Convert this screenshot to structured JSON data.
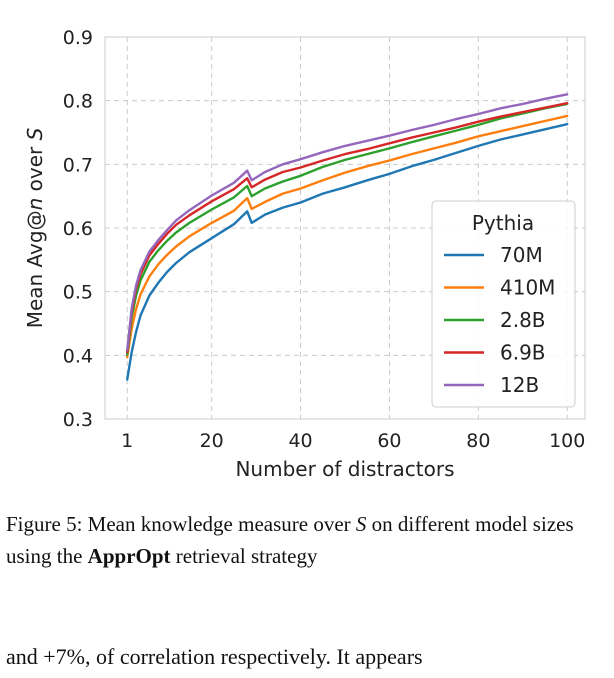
{
  "chart_data": {
    "type": "line",
    "xlabel": "Number of distractors",
    "ylabel_prefix": "Mean Avg@",
    "ylabel_var": "n",
    "ylabel_mid": " over ",
    "ylabel_set": "S",
    "xlim": [
      -4,
      104
    ],
    "ylim": [
      0.3,
      0.9
    ],
    "xticks": [
      1,
      20,
      40,
      60,
      80,
      100
    ],
    "yticks": [
      0.3,
      0.4,
      0.5,
      0.6,
      0.7,
      0.8,
      0.9
    ],
    "grid": true,
    "legend_title": "Pythia",
    "legend_position": "lower-right",
    "series": [
      {
        "name": "70M",
        "color": "#1f77b4",
        "x": [
          1,
          2,
          3,
          4,
          6,
          8,
          10,
          12,
          15,
          20,
          25,
          28,
          29,
          32,
          36,
          40,
          45,
          50,
          55,
          60,
          65,
          70,
          75,
          80,
          85,
          90,
          95,
          100
        ],
        "y": [
          0.362,
          0.405,
          0.437,
          0.463,
          0.494,
          0.514,
          0.531,
          0.545,
          0.562,
          0.584,
          0.606,
          0.626,
          0.608,
          0.621,
          0.632,
          0.64,
          0.654,
          0.664,
          0.675,
          0.685,
          0.697,
          0.707,
          0.718,
          0.729,
          0.739,
          0.747,
          0.755,
          0.763
        ]
      },
      {
        "name": "410M",
        "color": "#ff7f0e",
        "x": [
          1,
          2,
          3,
          4,
          6,
          8,
          10,
          12,
          15,
          20,
          25,
          28,
          29,
          32,
          36,
          40,
          45,
          50,
          55,
          60,
          65,
          70,
          75,
          80,
          85,
          90,
          95,
          100
        ],
        "y": [
          0.397,
          0.442,
          0.473,
          0.496,
          0.524,
          0.543,
          0.558,
          0.571,
          0.587,
          0.608,
          0.627,
          0.647,
          0.63,
          0.641,
          0.654,
          0.662,
          0.675,
          0.687,
          0.697,
          0.706,
          0.716,
          0.725,
          0.734,
          0.744,
          0.752,
          0.76,
          0.768,
          0.776
        ]
      },
      {
        "name": "2.8B",
        "color": "#2ca02c",
        "x": [
          1,
          2,
          3,
          4,
          6,
          8,
          10,
          12,
          15,
          20,
          25,
          28,
          29,
          32,
          36,
          40,
          45,
          50,
          55,
          60,
          65,
          70,
          75,
          80,
          85,
          90,
          95,
          100
        ],
        "y": [
          0.401,
          0.46,
          0.494,
          0.518,
          0.547,
          0.565,
          0.58,
          0.593,
          0.608,
          0.629,
          0.648,
          0.666,
          0.65,
          0.662,
          0.673,
          0.682,
          0.696,
          0.707,
          0.716,
          0.725,
          0.735,
          0.744,
          0.753,
          0.762,
          0.772,
          0.78,
          0.788,
          0.795
        ]
      },
      {
        "name": "6.9B",
        "color": "#d62728",
        "x": [
          1,
          2,
          3,
          4,
          6,
          8,
          10,
          12,
          15,
          20,
          25,
          28,
          29,
          32,
          36,
          40,
          45,
          50,
          55,
          60,
          65,
          70,
          75,
          80,
          85,
          90,
          95,
          100
        ],
        "y": [
          0.405,
          0.469,
          0.505,
          0.528,
          0.557,
          0.575,
          0.591,
          0.605,
          0.62,
          0.642,
          0.661,
          0.678,
          0.664,
          0.676,
          0.688,
          0.695,
          0.706,
          0.716,
          0.724,
          0.733,
          0.742,
          0.75,
          0.758,
          0.767,
          0.775,
          0.782,
          0.789,
          0.796
        ]
      },
      {
        "name": "12B",
        "color": "#9467bd",
        "x": [
          1,
          2,
          3,
          4,
          6,
          8,
          10,
          12,
          15,
          20,
          25,
          28,
          29,
          32,
          36,
          40,
          45,
          50,
          55,
          60,
          65,
          70,
          75,
          80,
          85,
          90,
          95,
          100
        ],
        "y": [
          0.408,
          0.474,
          0.51,
          0.534,
          0.563,
          0.581,
          0.597,
          0.612,
          0.628,
          0.651,
          0.671,
          0.69,
          0.675,
          0.688,
          0.7,
          0.708,
          0.719,
          0.729,
          0.737,
          0.745,
          0.754,
          0.762,
          0.771,
          0.779,
          0.788,
          0.795,
          0.803,
          0.81
        ]
      }
    ]
  },
  "caption": {
    "prefix": "Figure 5: Mean knowledge measure over ",
    "set": "S",
    "mid": " on different model sizes using the ",
    "bold": "ApprOpt",
    "suffix": " retrieval strategy"
  },
  "body_text": "and +7%, of correlation respectively.  It appears"
}
